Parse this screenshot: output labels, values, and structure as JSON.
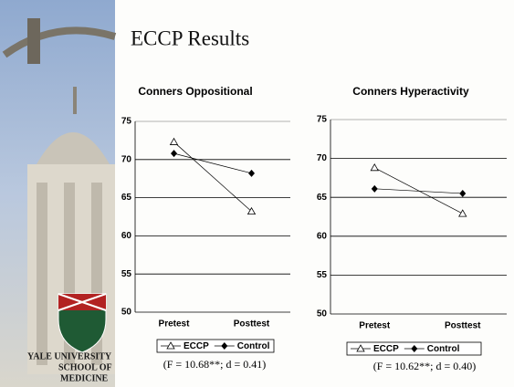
{
  "title": "ECCP Results",
  "logo_text": [
    "YALE UNIVERSITY",
    "SCHOOL OF",
    "MEDICINE"
  ],
  "chart_data": [
    {
      "type": "line",
      "title": "Conners Oppositional",
      "categories": [
        "Pretest",
        "Posttest"
      ],
      "series": [
        {
          "name": "ECCP",
          "color": "#000000",
          "marker": "triangle",
          "values": [
            72.3,
            63.2
          ]
        },
        {
          "name": "Control",
          "color": "#000000",
          "marker": "diamond",
          "values": [
            70.8,
            68.2
          ]
        }
      ],
      "ylim": [
        50,
        75
      ],
      "yticks": [
        50,
        55,
        60,
        65,
        70,
        75
      ],
      "grid": true,
      "legend": "bottom",
      "annotation": "(F = 10.68**; d = 0.41)"
    },
    {
      "type": "line",
      "title": "Conners Hyperactivity",
      "categories": [
        "Pretest",
        "Posttest"
      ],
      "series": [
        {
          "name": "ECCP",
          "color": "#000000",
          "marker": "triangle",
          "values": [
            68.8,
            62.9
          ]
        },
        {
          "name": "Control",
          "color": "#000000",
          "marker": "diamond",
          "values": [
            66.1,
            65.5
          ]
        }
      ],
      "ylim": [
        50,
        75
      ],
      "yticks": [
        50,
        55,
        60,
        65,
        70,
        75
      ],
      "grid": true,
      "legend": "bottom",
      "annotation": "(F = 10.62**; d = 0.40)"
    }
  ]
}
